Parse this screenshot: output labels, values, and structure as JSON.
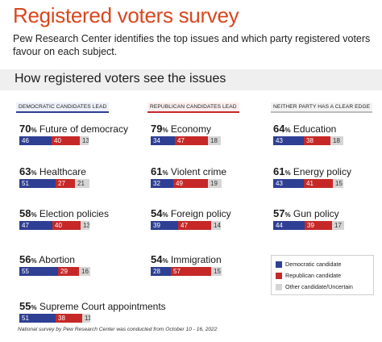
{
  "header": {
    "title": "Registered voters survey",
    "subtitle": "Pew Research Center identifies the top issues and which party registered voters favour on each subject."
  },
  "section": {
    "title": "How registered voters see the issues"
  },
  "groups": {
    "democratic": "DEMOCRATIC CANDIDATES  LEAD",
    "republican": "REPUBLICAN CANDIDATES  LEAD",
    "neither": "NEITHER PARTY HAS A CLEAR EDGE"
  },
  "legend": {
    "democratic": "Democratic candidate",
    "republican": "Republican candidate",
    "other": "Other candidate/Uncertain"
  },
  "colors": {
    "democratic": "#2e3f94",
    "republican": "#c62828",
    "other": "#d5d5d5",
    "title": "#d9471e"
  },
  "footnote": "National survey by Pew Research Center was conducted from October 10 - 16, 2022",
  "chart_data": {
    "type": "bar",
    "orientation": "horizontal-stacked",
    "series_order": [
      "Democratic candidate",
      "Republican candidate",
      "Other candidate/Uncertain"
    ],
    "items": [
      {
        "group": "democratic",
        "importance": 70,
        "issue": "Future of democracy",
        "values": [
          46,
          40,
          13
        ]
      },
      {
        "group": "democratic",
        "importance": 63,
        "issue": "Healthcare",
        "values": [
          51,
          27,
          21
        ]
      },
      {
        "group": "democratic",
        "importance": 58,
        "issue": "Election policies",
        "values": [
          47,
          40,
          13
        ]
      },
      {
        "group": "democratic",
        "importance": 56,
        "issue": "Abortion",
        "values": [
          55,
          29,
          16
        ]
      },
      {
        "group": "democratic",
        "importance": 55,
        "issue": "Supreme Court appointments",
        "values": [
          51,
          38,
          11
        ]
      },
      {
        "group": "republican",
        "importance": 79,
        "issue": "Economy",
        "values": [
          34,
          47,
          18
        ]
      },
      {
        "group": "republican",
        "importance": 61,
        "issue": "Violent crime",
        "values": [
          32,
          49,
          19
        ]
      },
      {
        "group": "republican",
        "importance": 54,
        "issue": "Foreign policy",
        "values": [
          39,
          47,
          14
        ]
      },
      {
        "group": "republican",
        "importance": 54,
        "issue": "Immigration",
        "values": [
          28,
          57,
          15
        ]
      },
      {
        "group": "neither",
        "importance": 64,
        "issue": "Education",
        "values": [
          43,
          38,
          18
        ]
      },
      {
        "group": "neither",
        "importance": 61,
        "issue": "Energy policy",
        "values": [
          43,
          41,
          15
        ]
      },
      {
        "group": "neither",
        "importance": 57,
        "issue": "Gun policy",
        "values": [
          44,
          39,
          17
        ]
      }
    ]
  }
}
